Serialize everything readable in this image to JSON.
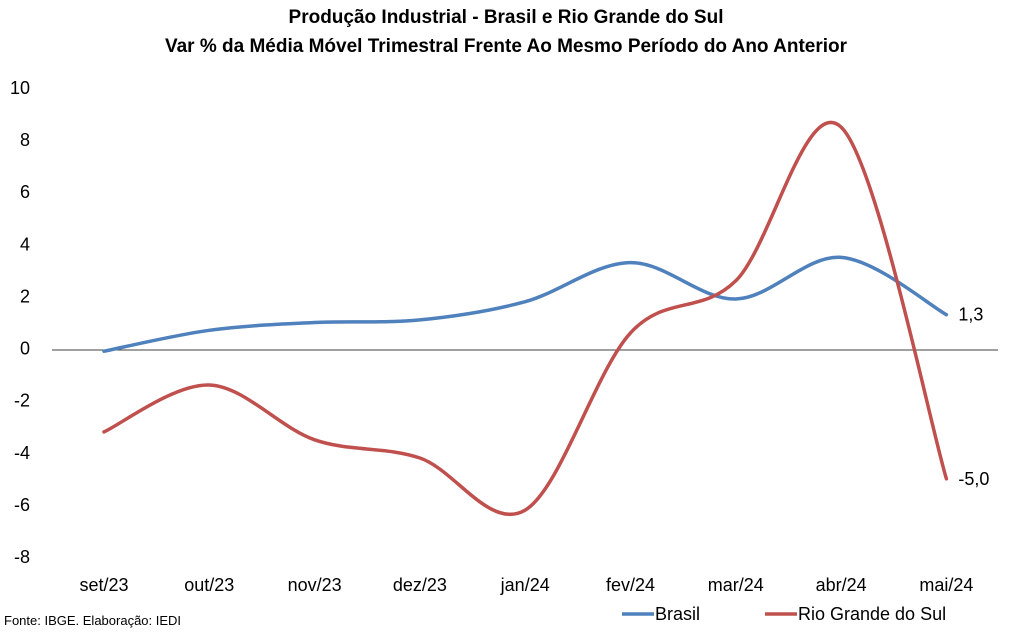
{
  "chart_data": {
    "type": "line",
    "title": "Produção Industrial - Brasil e Rio Grande do Sul",
    "subtitle": "Var % da Média Móvel Trimestral Frente Ao Mesmo Período do Ano Anterior",
    "categories": [
      "set/23",
      "out/23",
      "nov/23",
      "dez/23",
      "jan/24",
      "fev/24",
      "mar/24",
      "abr/24",
      "mai/24"
    ],
    "ylim": [
      -8,
      10
    ],
    "yticks": [
      "10",
      "8",
      "6",
      "4",
      "2",
      "0",
      "-2",
      "-4",
      "-6",
      "-8"
    ],
    "grid": false,
    "legend_position": "bottom-right",
    "series": [
      {
        "name": "Brasil",
        "color": "#4f81bd",
        "values": [
          -0.1,
          0.7,
          1.0,
          1.1,
          1.8,
          3.3,
          1.9,
          3.5,
          1.3
        ],
        "end_label": "1,3"
      },
      {
        "name": "Rio Grande do Sul",
        "color": "#c0504d",
        "values": [
          -3.2,
          -1.4,
          -3.5,
          -4.2,
          -6.2,
          0.6,
          2.6,
          8.5,
          -5.0
        ],
        "end_label": "-5,0"
      }
    ],
    "source": "Fonte: IBGE. Elaboração: IEDI"
  }
}
